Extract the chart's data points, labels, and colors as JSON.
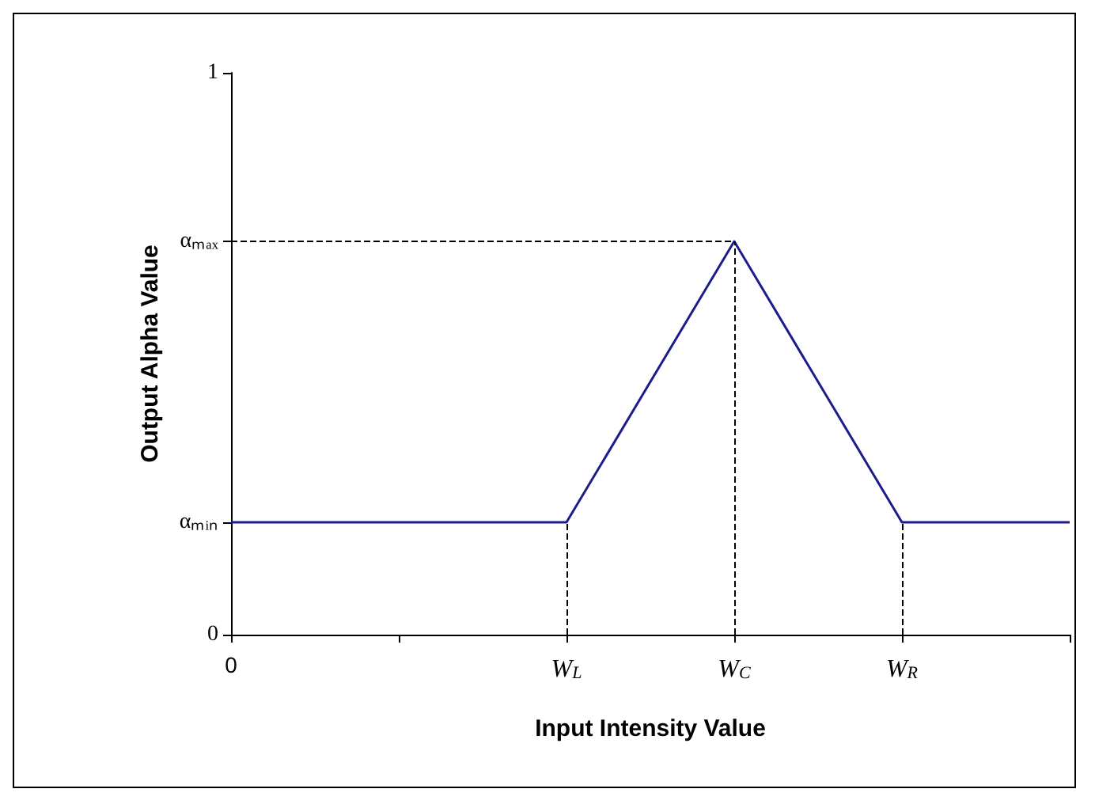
{
  "chart_data": {
    "type": "line",
    "xlabel": "Input Intensity Value",
    "ylabel": "Output Alpha Value",
    "categories": [
      "0",
      null,
      "W$_{L}$",
      "W$_{C}$",
      "W$_{R}$",
      null
    ],
    "series": [
      {
        "color": "#1c1c8c",
        "values": [
          0.2,
          0.2,
          0.2,
          0.7,
          0.2,
          0.2
        ]
      }
    ],
    "ylim": [
      0,
      1
    ],
    "yticks": [
      0,
      {
        "value": 0.2,
        "label": "αₘᵢₙ"
      },
      {
        "value": 0.7,
        "label": "αₘₐₓ"
      },
      1
    ],
    "ref_lines": [
      {
        "axis": "x",
        "value": "W$_{L}$",
        "line_style": "dashed"
      },
      {
        "axis": "x",
        "value": "W$_{C}$",
        "line_style": "dashed"
      },
      {
        "axis": "x",
        "value": "W$_{R}$",
        "line_style": "dashed"
      },
      {
        "axis": "y",
        "value": 0.7,
        "line_style": "dashed"
      }
    ],
    "grid": false,
    "marker": "none",
    "line_style": "solid"
  }
}
